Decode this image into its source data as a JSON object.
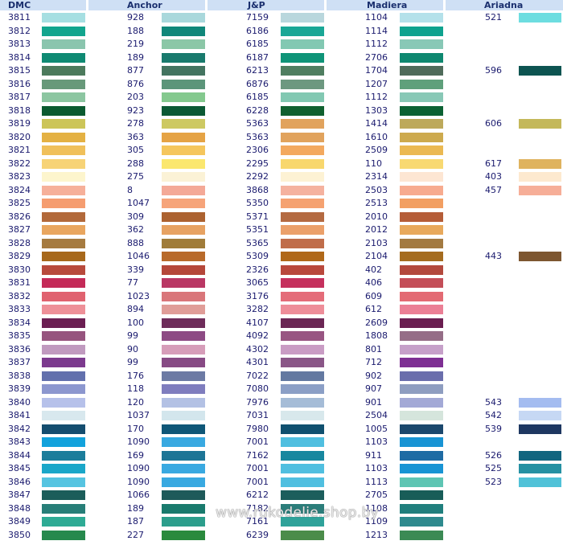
{
  "headers": [
    "DMC",
    "Anchor",
    "J&P",
    "Madiera",
    "Ariadna"
  ],
  "rows": [
    {
      "dmc": "3811",
      "dmc_color": "#a6dfe2",
      "anchor": "928",
      "anchor_color": "#a9d8dc",
      "jp": "7159",
      "jp_color": "#b9d7dd",
      "madiera": "1104",
      "madiera_color": "#b4e1ea",
      "ariadna": "521",
      "ariadna_color": "#6ddde0"
    },
    {
      "dmc": "3812",
      "dmc_color": "#12a58e",
      "anchor": "188",
      "anchor_color": "#10877a",
      "jp": "6186",
      "jp_color": "#1aa796",
      "madiera": "1114",
      "madiera_color": "#0ea28e",
      "ariadna": "",
      "ariadna_color": ""
    },
    {
      "dmc": "3813",
      "dmc_color": "#8ac5ae",
      "anchor": "219",
      "anchor_color": "#8bc7a7",
      "jp": "6185",
      "jp_color": "#82c8b2",
      "madiera": "1112",
      "madiera_color": "#88c8b6",
      "ariadna": "",
      "ariadna_color": ""
    },
    {
      "dmc": "3814",
      "dmc_color": "#0f8a73",
      "anchor": "189",
      "anchor_color": "#197a6d",
      "jp": "6187",
      "jp_color": "#0f9478",
      "madiera": "2706",
      "madiera_color": "#0e8870",
      "ariadna": "",
      "ariadna_color": ""
    },
    {
      "dmc": "3815",
      "dmc_color": "#4c7a5c",
      "anchor": "877",
      "anchor_color": "#437460",
      "jp": "6213",
      "jp_color": "#4f7e60",
      "madiera": "1704",
      "madiera_color": "#4f6b5a",
      "ariadna": "596",
      "ariadna_color": "#0d5451"
    },
    {
      "dmc": "3816",
      "dmc_color": "#68997a",
      "anchor": "876",
      "anchor_color": "#5c957a",
      "jp": "6876",
      "jp_color": "#6d9880",
      "madiera": "1207",
      "madiera_color": "#5fa07b",
      "ariadna": "",
      "ariadna_color": ""
    },
    {
      "dmc": "3817",
      "dmc_color": "#8cc6a1",
      "anchor": "203",
      "anchor_color": "#84c98e",
      "jp": "6185",
      "jp_color": "#82c8b2",
      "madiera": "1112",
      "madiera_color": "#88c8b6",
      "ariadna": "",
      "ariadna_color": ""
    },
    {
      "dmc": "3818",
      "dmc_color": "#0b5a30",
      "anchor": "923",
      "anchor_color": "#0b5934",
      "jp": "6228",
      "jp_color": "#10602f",
      "madiera": "1303",
      "madiera_color": "#0b6133",
      "ariadna": "",
      "ariadna_color": ""
    },
    {
      "dmc": "3819",
      "dmc_color": "#ccc558",
      "anchor": "278",
      "anchor_color": "#cdc962",
      "jp": "5363",
      "jp_color": "#e1a35d",
      "madiera": "1414",
      "madiera_color": "#bda95b",
      "ariadna": "606",
      "ariadna_color": "#c4b85a"
    },
    {
      "dmc": "3820",
      "dmc_color": "#e4b143",
      "anchor": "363",
      "anchor_color": "#e5a345",
      "jp": "5363",
      "jp_color": "#e1a35d",
      "madiera": "1610",
      "madiera_color": "#cdaa4e",
      "ariadna": "",
      "ariadna_color": ""
    },
    {
      "dmc": "3821",
      "dmc_color": "#f0c05a",
      "anchor": "305",
      "anchor_color": "#f5c65c",
      "jp": "2306",
      "jp_color": "#f3a95f",
      "madiera": "2509",
      "madiera_color": "#ebb952",
      "ariadna": "",
      "ariadna_color": ""
    },
    {
      "dmc": "3822",
      "dmc_color": "#f7d376",
      "anchor": "288",
      "anchor_color": "#fbe76e",
      "jp": "2295",
      "jp_color": "#f8d76d",
      "madiera": "110",
      "madiera_color": "#f8d972",
      "ariadna": "617",
      "ariadna_color": "#dfb35f"
    },
    {
      "dmc": "3823",
      "dmc_color": "#fdf5cd",
      "anchor": "275",
      "anchor_color": "#fbf2d6",
      "jp": "2292",
      "jp_color": "#fdf2d4",
      "madiera": "2314",
      "madiera_color": "#fde6d3",
      "ariadna": "403",
      "ariadna_color": "#fde9cf"
    },
    {
      "dmc": "3824",
      "dmc_color": "#f6b09a",
      "anchor": "8",
      "anchor_color": "#f4a997",
      "jp": "3868",
      "jp_color": "#f5b29f",
      "madiera": "2503",
      "madiera_color": "#f7ab8f",
      "ariadna": "457",
      "ariadna_color": "#f6ae98"
    },
    {
      "dmc": "3825",
      "dmc_color": "#f59d70",
      "anchor": "1047",
      "anchor_color": "#f6a47a",
      "jp": "5350",
      "jp_color": "#f5a271",
      "madiera": "2513",
      "madiera_color": "#f29f62",
      "ariadna": "",
      "ariadna_color": ""
    },
    {
      "dmc": "3826",
      "dmc_color": "#b2693a",
      "anchor": "309",
      "anchor_color": "#ac6230",
      "jp": "5371",
      "jp_color": "#b46a41",
      "madiera": "2010",
      "madiera_color": "#b55d38",
      "ariadna": "",
      "ariadna_color": ""
    },
    {
      "dmc": "3827",
      "dmc_color": "#e9a65f",
      "anchor": "362",
      "anchor_color": "#e7a262",
      "jp": "5351",
      "jp_color": "#eba06a",
      "madiera": "2012",
      "madiera_color": "#e8a95c",
      "ariadna": "",
      "ariadna_color": ""
    },
    {
      "dmc": "3828",
      "dmc_color": "#a67b40",
      "anchor": "888",
      "anchor_color": "#a07c39",
      "jp": "5365",
      "jp_color": "#c06d4a",
      "madiera": "2103",
      "madiera_color": "#a37a41",
      "ariadna": "",
      "ariadna_color": ""
    },
    {
      "dmc": "3829",
      "dmc_color": "#a7681b",
      "anchor": "1046",
      "anchor_color": "#b86a2a",
      "jp": "5309",
      "jp_color": "#b06819",
      "madiera": "2104",
      "madiera_color": "#a56c1f",
      "ariadna": "443",
      "ariadna_color": "#7d5630"
    },
    {
      "dmc": "3830",
      "dmc_color": "#b84a3c",
      "anchor": "339",
      "anchor_color": "#b5473a",
      "jp": "2326",
      "jp_color": "#b9483c",
      "madiera": "402",
      "madiera_color": "#b3493d",
      "ariadna": "",
      "ariadna_color": ""
    },
    {
      "dmc": "3831",
      "dmc_color": "#c42a58",
      "anchor": "77",
      "anchor_color": "#b93764",
      "jp": "3065",
      "jp_color": "#c5305d",
      "madiera": "406",
      "madiera_color": "#c44e58",
      "ariadna": "",
      "ariadna_color": ""
    },
    {
      "dmc": "3832",
      "dmc_color": "#e0626f",
      "anchor": "1023",
      "anchor_color": "#d9767a",
      "jp": "3176",
      "jp_color": "#e46c79",
      "madiera": "609",
      "madiera_color": "#e36a73",
      "ariadna": "",
      "ariadna_color": ""
    },
    {
      "dmc": "3833",
      "dmc_color": "#ee9098",
      "anchor": "894",
      "anchor_color": "#e09d98",
      "jp": "3282",
      "jp_color": "#ee8d99",
      "madiera": "612",
      "madiera_color": "#eb7f95",
      "ariadna": "",
      "ariadna_color": ""
    },
    {
      "dmc": "3834",
      "dmc_color": "#6b1e52",
      "anchor": "100",
      "anchor_color": "#6e2c5a",
      "jp": "4107",
      "jp_color": "#6b2654",
      "madiera": "2609",
      "madiera_color": "#6a1d50",
      "ariadna": "",
      "ariadna_color": ""
    },
    {
      "dmc": "3835",
      "dmc_color": "#96547e",
      "anchor": "99",
      "anchor_color": "#8d4a84",
      "jp": "4092",
      "jp_color": "#985582",
      "madiera": "1808",
      "madiera_color": "#956d87",
      "ariadna": "",
      "ariadna_color": ""
    },
    {
      "dmc": "3836",
      "dmc_color": "#c09abf",
      "anchor": "90",
      "anchor_color": "#d69db9",
      "jp": "4302",
      "jp_color": "#c99cc4",
      "madiera": "801",
      "madiera_color": "#c6a0c9",
      "ariadna": "",
      "ariadna_color": ""
    },
    {
      "dmc": "3837",
      "dmc_color": "#7c3a8e",
      "anchor": "99",
      "anchor_color": "#874a84",
      "jp": "4301",
      "jp_color": "#8a5687",
      "madiera": "712",
      "madiera_color": "#7e2f93",
      "ariadna": "",
      "ariadna_color": ""
    },
    {
      "dmc": "3838",
      "dmc_color": "#6270ad",
      "anchor": "176",
      "anchor_color": "#6c7aa4",
      "jp": "7022",
      "jp_color": "#6379a1",
      "madiera": "902",
      "madiera_color": "#6a6eac",
      "ariadna": "",
      "ariadna_color": ""
    },
    {
      "dmc": "3839",
      "dmc_color": "#8c97cf",
      "anchor": "118",
      "anchor_color": "#7f7dbe",
      "jp": "7080",
      "jp_color": "#8b9fc6",
      "madiera": "907",
      "madiera_color": "#8e9dc0",
      "ariadna": "",
      "ariadna_color": ""
    },
    {
      "dmc": "3840",
      "dmc_color": "#b6c1ea",
      "anchor": "120",
      "anchor_color": "#b3c1e4",
      "jp": "7976",
      "jp_color": "#a5bcd7",
      "madiera": "901",
      "madiera_color": "#a3a9d6",
      "ariadna": "543",
      "ariadna_color": "#a4bcf0"
    },
    {
      "dmc": "3841",
      "dmc_color": "#d8e8ee",
      "anchor": "1037",
      "anchor_color": "#d3e6ed",
      "jp": "7031",
      "jp_color": "#d8e8ec",
      "madiera": "2504",
      "madiera_color": "#d5e5dc",
      "ariadna": "542",
      "ariadna_color": "#c6d8f4"
    },
    {
      "dmc": "3842",
      "dmc_color": "#144d6f",
      "anchor": "170",
      "anchor_color": "#0f5778",
      "jp": "7980",
      "jp_color": "#10506f",
      "madiera": "1005",
      "madiera_color": "#1b486d",
      "ariadna": "539",
      "ariadna_color": "#1e3761"
    },
    {
      "dmc": "3843",
      "dmc_color": "#12a2dc",
      "anchor": "1090",
      "anchor_color": "#39a9e1",
      "jp": "7001",
      "jp_color": "#50bfe0",
      "madiera": "1103",
      "madiera_color": "#1894d4",
      "ariadna": "",
      "ariadna_color": ""
    },
    {
      "dmc": "3844",
      "dmc_color": "#1b7d9b",
      "anchor": "169",
      "anchor_color": "#1d7596",
      "jp": "7162",
      "jp_color": "#17879f",
      "madiera": "911",
      "madiera_color": "#1e6ba4",
      "ariadna": "526",
      "ariadna_color": "#11657f"
    },
    {
      "dmc": "3845",
      "dmc_color": "#1aa7c9",
      "anchor": "1090",
      "anchor_color": "#39a9e1",
      "jp": "7001",
      "jp_color": "#50bfe0",
      "madiera": "1103",
      "madiera_color": "#1894d4",
      "ariadna": "525",
      "ariadna_color": "#2591a3"
    },
    {
      "dmc": "3846",
      "dmc_color": "#56c4e1",
      "anchor": "1090",
      "anchor_color": "#39a9e1",
      "jp": "7001",
      "jp_color": "#50bfe0",
      "madiera": "1113",
      "madiera_color": "#5ec5b3",
      "ariadna": "523",
      "ariadna_color": "#50c2d8"
    },
    {
      "dmc": "3847",
      "dmc_color": "#1b5d5a",
      "anchor": "1066",
      "anchor_color": "#1e5a5a",
      "jp": "6212",
      "jp_color": "#1c5e5c",
      "madiera": "2705",
      "madiera_color": "#185d58",
      "ariadna": "",
      "ariadna_color": ""
    },
    {
      "dmc": "3848",
      "dmc_color": "#277e78",
      "anchor": "189",
      "anchor_color": "#197a6d",
      "jp": "7182",
      "jp_color": "#2b7d7a",
      "madiera": "1108",
      "madiera_color": "#207f7d",
      "ariadna": "",
      "ariadna_color": ""
    },
    {
      "dmc": "3849",
      "dmc_color": "#2eab95",
      "anchor": "187",
      "anchor_color": "#2c9e8c",
      "jp": "7161",
      "jp_color": "#2fa29a",
      "madiera": "1109",
      "madiera_color": "#2e8a8e",
      "ariadna": "",
      "ariadna_color": ""
    },
    {
      "dmc": "3850",
      "dmc_color": "#26894d",
      "anchor": "227",
      "anchor_color": "#2a8a3d",
      "jp": "6239",
      "jp_color": "#4b8c4a",
      "madiera": "1213",
      "madiera_color": "#3b8a54",
      "ariadna": "",
      "ariadna_color": ""
    }
  ],
  "watermark": "www.rukodelie.shop.by"
}
